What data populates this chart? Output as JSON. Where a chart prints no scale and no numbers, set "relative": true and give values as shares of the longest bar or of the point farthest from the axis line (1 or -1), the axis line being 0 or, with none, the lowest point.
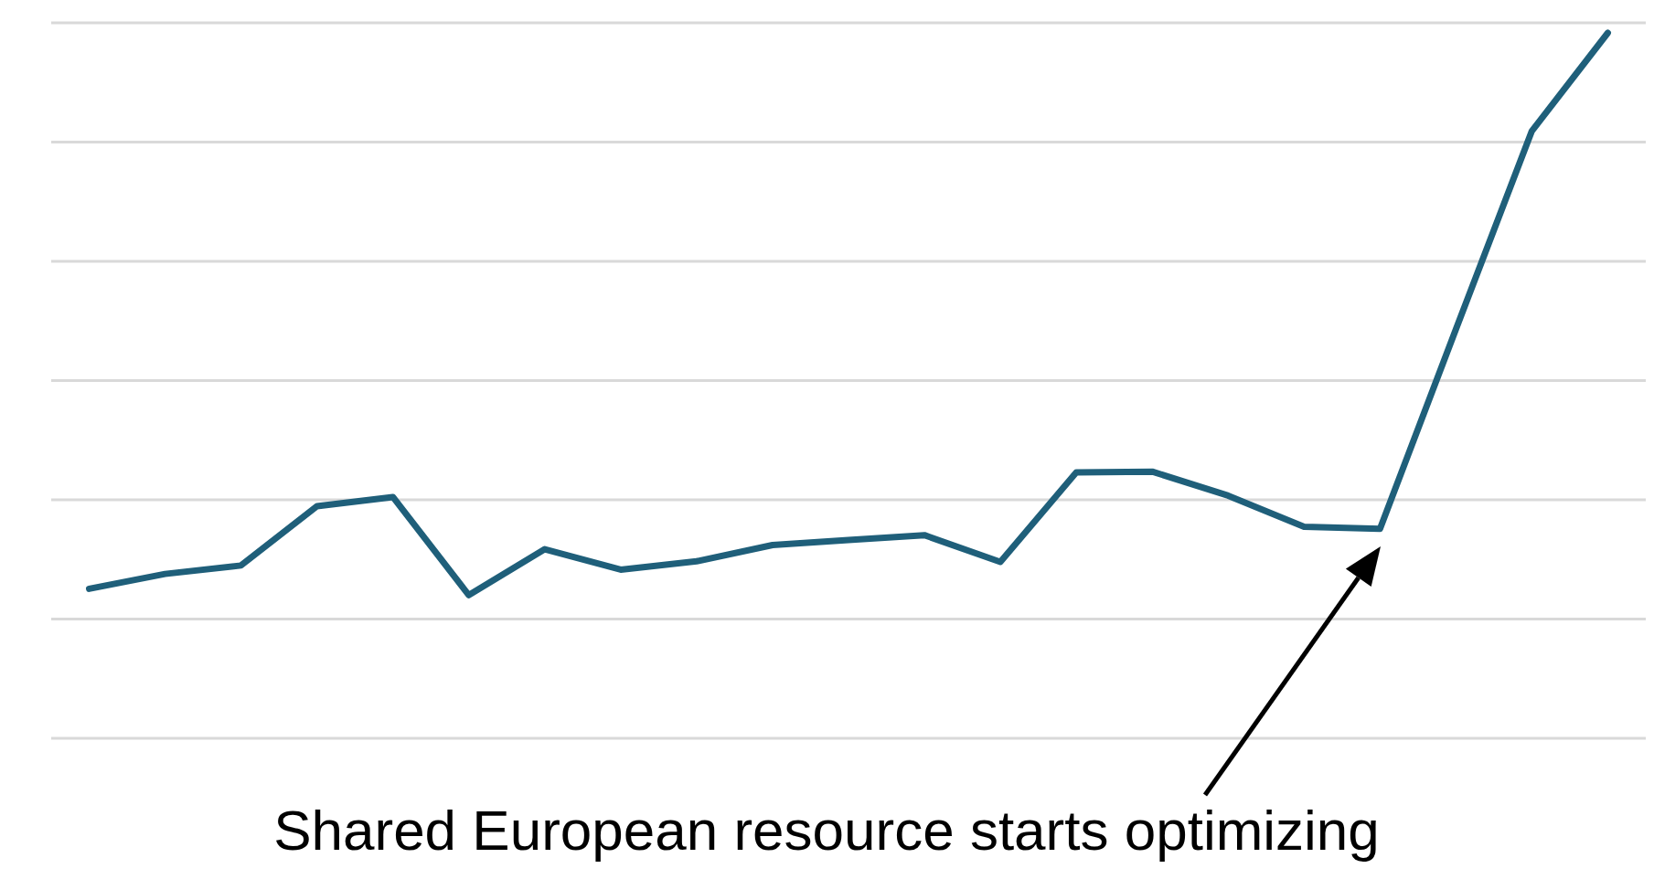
{
  "chart_data": {
    "type": "line",
    "relative": true,
    "categories": [
      null,
      null,
      null,
      null,
      null,
      null,
      null,
      null,
      null,
      null,
      null,
      null,
      null,
      null,
      null,
      null,
      null,
      null,
      null,
      null,
      null
    ],
    "grid": "y",
    "color": "#1f5f7a",
    "line_style": "solid",
    "marker": "none",
    "values": [
      0.212,
      0.233,
      0.245,
      0.329,
      0.342,
      0.203,
      0.268,
      0.239,
      0.251,
      0.274,
      0.281,
      0.288,
      0.25,
      0.377,
      0.378,
      0.344,
      0.3,
      0.297,
      0.58,
      0.861,
      1
    ],
    "annotations": [
      "Shared European resource starts optimizing"
    ]
  }
}
